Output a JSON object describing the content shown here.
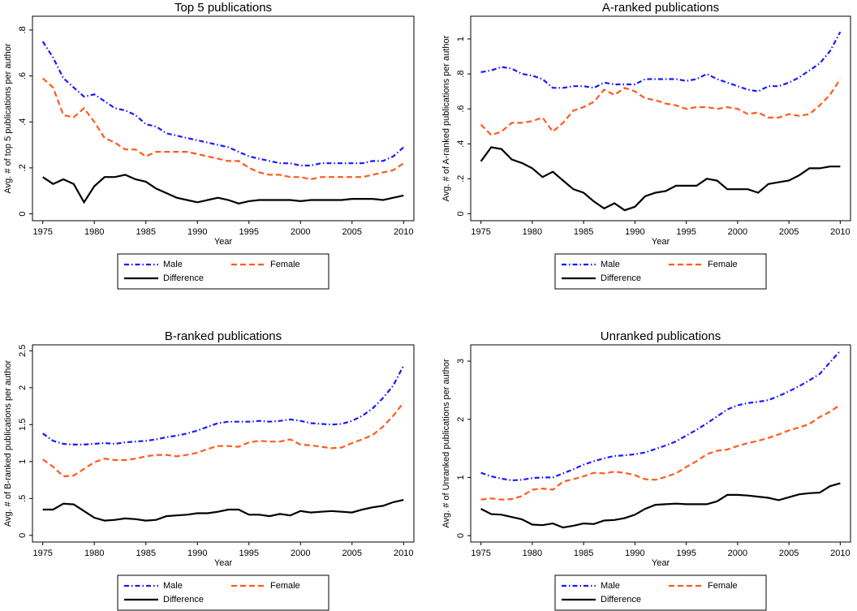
{
  "chart_data": [
    {
      "type": "line",
      "title": "Top 5 publications",
      "x_label": "Year",
      "y_label": "Avg. # of top 5 publications per author",
      "x": [
        1975,
        1976,
        1977,
        1978,
        1979,
        1980,
        1981,
        1982,
        1983,
        1984,
        1985,
        1986,
        1987,
        1988,
        1989,
        1990,
        1991,
        1992,
        1993,
        1994,
        1995,
        1996,
        1997,
        1998,
        1999,
        2000,
        2001,
        2002,
        2003,
        2004,
        2005,
        2006,
        2007,
        2008,
        2009,
        2010
      ],
      "xlim": [
        1974,
        2011
      ],
      "xticks": [
        1975,
        1980,
        1985,
        1990,
        1995,
        2000,
        2005,
        2010
      ],
      "ylim": [
        -0.03,
        0.86
      ],
      "yticks": [
        0,
        {
          "value": 0.2,
          "label": ".2"
        },
        {
          "value": 0.4,
          "label": ".4"
        },
        {
          "value": 0.6,
          "label": ".6"
        },
        {
          "value": 0.8,
          "label": ".8"
        }
      ],
      "series": [
        {
          "name": "Male",
          "color": "#1a1aff",
          "line_style": "dashdot",
          "values": [
            0.75,
            0.68,
            0.59,
            0.55,
            0.51,
            0.52,
            0.49,
            0.46,
            0.45,
            0.43,
            0.39,
            0.38,
            0.35,
            0.34,
            0.33,
            0.32,
            0.31,
            0.3,
            0.29,
            0.27,
            0.25,
            0.24,
            0.23,
            0.22,
            0.22,
            0.21,
            0.21,
            0.22,
            0.22,
            0.22,
            0.22,
            0.22,
            0.23,
            0.23,
            0.25,
            0.29
          ]
        },
        {
          "name": "Female",
          "color": "#ff5a1f",
          "line_style": "dash",
          "values": [
            0.59,
            0.55,
            0.43,
            0.42,
            0.46,
            0.4,
            0.33,
            0.31,
            0.28,
            0.28,
            0.25,
            0.27,
            0.27,
            0.27,
            0.27,
            0.26,
            0.25,
            0.24,
            0.23,
            0.23,
            0.2,
            0.18,
            0.17,
            0.17,
            0.16,
            0.16,
            0.15,
            0.16,
            0.16,
            0.16,
            0.16,
            0.16,
            0.17,
            0.18,
            0.19,
            0.22
          ]
        },
        {
          "name": "Difference",
          "color": "#000000",
          "line_style": "solid",
          "values": [
            0.16,
            0.13,
            0.15,
            0.13,
            0.05,
            0.12,
            0.16,
            0.16,
            0.17,
            0.15,
            0.14,
            0.11,
            0.09,
            0.07,
            0.06,
            0.05,
            0.06,
            0.07,
            0.06,
            0.045,
            0.055,
            0.06,
            0.06,
            0.06,
            0.06,
            0.055,
            0.06,
            0.06,
            0.06,
            0.06,
            0.065,
            0.065,
            0.065,
            0.06,
            0.07,
            0.08
          ]
        }
      ]
    },
    {
      "type": "line",
      "title": "A-ranked publications",
      "x_label": "Year",
      "y_label": "Avg. # of A-ranked publications per author",
      "x": [
        1975,
        1976,
        1977,
        1978,
        1979,
        1980,
        1981,
        1982,
        1983,
        1984,
        1985,
        1986,
        1987,
        1988,
        1989,
        1990,
        1991,
        1992,
        1993,
        1994,
        1995,
        1996,
        1997,
        1998,
        1999,
        2000,
        2001,
        2002,
        2003,
        2004,
        2005,
        2006,
        2007,
        2008,
        2009,
        2010
      ],
      "xlim": [
        1974,
        2011
      ],
      "xticks": [
        1975,
        1980,
        1985,
        1990,
        1995,
        2000,
        2005,
        2010
      ],
      "ylim": [
        -0.04,
        1.13
      ],
      "yticks": [
        0,
        {
          "value": 0.2,
          "label": ".2"
        },
        {
          "value": 0.4,
          "label": ".4"
        },
        {
          "value": 0.6,
          "label": ".6"
        },
        {
          "value": 0.8,
          "label": ".8"
        },
        1
      ],
      "series": [
        {
          "name": "Male",
          "color": "#1a1aff",
          "line_style": "dashdot",
          "values": [
            0.81,
            0.82,
            0.84,
            0.83,
            0.8,
            0.79,
            0.77,
            0.72,
            0.72,
            0.73,
            0.73,
            0.72,
            0.75,
            0.74,
            0.74,
            0.74,
            0.77,
            0.77,
            0.77,
            0.77,
            0.76,
            0.77,
            0.8,
            0.77,
            0.75,
            0.73,
            0.71,
            0.7,
            0.73,
            0.73,
            0.75,
            0.78,
            0.82,
            0.86,
            0.93,
            1.04
          ]
        },
        {
          "name": "Female",
          "color": "#ff5a1f",
          "line_style": "dash",
          "values": [
            0.51,
            0.45,
            0.47,
            0.52,
            0.52,
            0.53,
            0.55,
            0.47,
            0.52,
            0.59,
            0.61,
            0.64,
            0.71,
            0.68,
            0.72,
            0.7,
            0.66,
            0.65,
            0.63,
            0.62,
            0.6,
            0.61,
            0.61,
            0.6,
            0.61,
            0.6,
            0.57,
            0.58,
            0.55,
            0.55,
            0.57,
            0.56,
            0.57,
            0.62,
            0.68,
            0.77
          ]
        },
        {
          "name": "Difference",
          "color": "#000000",
          "line_style": "solid",
          "values": [
            0.3,
            0.38,
            0.37,
            0.31,
            0.29,
            0.26,
            0.21,
            0.24,
            0.19,
            0.14,
            0.12,
            0.07,
            0.03,
            0.06,
            0.02,
            0.04,
            0.1,
            0.12,
            0.13,
            0.16,
            0.16,
            0.16,
            0.2,
            0.19,
            0.14,
            0.14,
            0.14,
            0.12,
            0.17,
            0.18,
            0.19,
            0.22,
            0.26,
            0.26,
            0.27,
            0.27
          ]
        }
      ]
    },
    {
      "type": "line",
      "title": "B-ranked publications",
      "x_label": "Year",
      "y_label": "Avg. # of B-ranked publications per author",
      "x": [
        1975,
        1976,
        1977,
        1978,
        1979,
        1980,
        1981,
        1982,
        1983,
        1984,
        1985,
        1986,
        1987,
        1988,
        1989,
        1990,
        1991,
        1992,
        1993,
        1994,
        1995,
        1996,
        1997,
        1998,
        1999,
        2000,
        2001,
        2002,
        2003,
        2004,
        2005,
        2006,
        2007,
        2008,
        2009,
        2010
      ],
      "xlim": [
        1974,
        2011
      ],
      "xticks": [
        1975,
        1980,
        1985,
        1990,
        1995,
        2000,
        2005,
        2010
      ],
      "ylim": [
        -0.09,
        2.58
      ],
      "yticks": [
        0,
        {
          "value": 0.5,
          "label": ".5"
        },
        1,
        1.5,
        2,
        2.5
      ],
      "series": [
        {
          "name": "Male",
          "color": "#1a1aff",
          "line_style": "dashdot",
          "values": [
            1.38,
            1.28,
            1.24,
            1.23,
            1.23,
            1.24,
            1.25,
            1.24,
            1.26,
            1.27,
            1.28,
            1.3,
            1.33,
            1.35,
            1.38,
            1.42,
            1.47,
            1.52,
            1.54,
            1.54,
            1.54,
            1.55,
            1.54,
            1.55,
            1.57,
            1.55,
            1.52,
            1.51,
            1.5,
            1.51,
            1.55,
            1.62,
            1.72,
            1.86,
            2.03,
            2.3
          ]
        },
        {
          "name": "Female",
          "color": "#ff5a1f",
          "line_style": "dash",
          "values": [
            1.03,
            0.93,
            0.8,
            0.81,
            0.9,
            0.99,
            1.04,
            1.02,
            1.02,
            1.04,
            1.07,
            1.09,
            1.09,
            1.07,
            1.09,
            1.12,
            1.17,
            1.21,
            1.21,
            1.2,
            1.26,
            1.28,
            1.27,
            1.27,
            1.3,
            1.23,
            1.22,
            1.2,
            1.18,
            1.19,
            1.25,
            1.3,
            1.36,
            1.47,
            1.62,
            1.8
          ]
        },
        {
          "name": "Difference",
          "color": "#000000",
          "line_style": "solid",
          "values": [
            0.35,
            0.35,
            0.43,
            0.42,
            0.33,
            0.24,
            0.2,
            0.21,
            0.23,
            0.22,
            0.2,
            0.21,
            0.26,
            0.27,
            0.28,
            0.3,
            0.3,
            0.32,
            0.35,
            0.35,
            0.28,
            0.28,
            0.26,
            0.29,
            0.27,
            0.33,
            0.31,
            0.32,
            0.33,
            0.32,
            0.31,
            0.35,
            0.38,
            0.4,
            0.45,
            0.48
          ]
        }
      ]
    },
    {
      "type": "line",
      "title": "Unranked publications",
      "x_label": "Year",
      "y_label": "Avg. # of Unranked publications per author",
      "x": [
        1975,
        1976,
        1977,
        1978,
        1979,
        1980,
        1981,
        1982,
        1983,
        1984,
        1985,
        1986,
        1987,
        1988,
        1989,
        1990,
        1991,
        1992,
        1993,
        1994,
        1995,
        1996,
        1997,
        1998,
        1999,
        2000,
        2001,
        2002,
        2003,
        2004,
        2005,
        2006,
        2007,
        2008,
        2009,
        2010
      ],
      "xlim": [
        1974,
        2011
      ],
      "xticks": [
        1975,
        1980,
        1985,
        1990,
        1995,
        2000,
        2005,
        2010
      ],
      "ylim": [
        -0.11,
        3.28
      ],
      "yticks": [
        0,
        1,
        2,
        3
      ],
      "series": [
        {
          "name": "Male",
          "color": "#1a1aff",
          "line_style": "dashdot",
          "values": [
            1.08,
            1.02,
            0.98,
            0.95,
            0.96,
            0.99,
            1.0,
            1.0,
            1.07,
            1.14,
            1.22,
            1.28,
            1.33,
            1.37,
            1.38,
            1.4,
            1.43,
            1.49,
            1.55,
            1.62,
            1.72,
            1.82,
            1.93,
            2.05,
            2.17,
            2.24,
            2.28,
            2.3,
            2.33,
            2.4,
            2.48,
            2.57,
            2.67,
            2.78,
            2.98,
            3.18
          ]
        },
        {
          "name": "Female",
          "color": "#ff5a1f",
          "line_style": "dash",
          "values": [
            0.62,
            0.64,
            0.62,
            0.63,
            0.68,
            0.79,
            0.81,
            0.79,
            0.93,
            0.97,
            1.02,
            1.08,
            1.07,
            1.1,
            1.08,
            1.04,
            0.97,
            0.96,
            1.01,
            1.07,
            1.18,
            1.28,
            1.4,
            1.46,
            1.48,
            1.54,
            1.59,
            1.63,
            1.68,
            1.74,
            1.81,
            1.86,
            1.92,
            2.04,
            2.13,
            2.25
          ]
        },
        {
          "name": "Difference",
          "color": "#000000",
          "line_style": "solid",
          "values": [
            0.46,
            0.37,
            0.36,
            0.32,
            0.28,
            0.19,
            0.18,
            0.21,
            0.14,
            0.17,
            0.21,
            0.2,
            0.26,
            0.27,
            0.3,
            0.36,
            0.46,
            0.53,
            0.54,
            0.55,
            0.54,
            0.54,
            0.54,
            0.59,
            0.7,
            0.7,
            0.69,
            0.67,
            0.65,
            0.61,
            0.66,
            0.71,
            0.73,
            0.74,
            0.85,
            0.9
          ]
        }
      ]
    }
  ]
}
